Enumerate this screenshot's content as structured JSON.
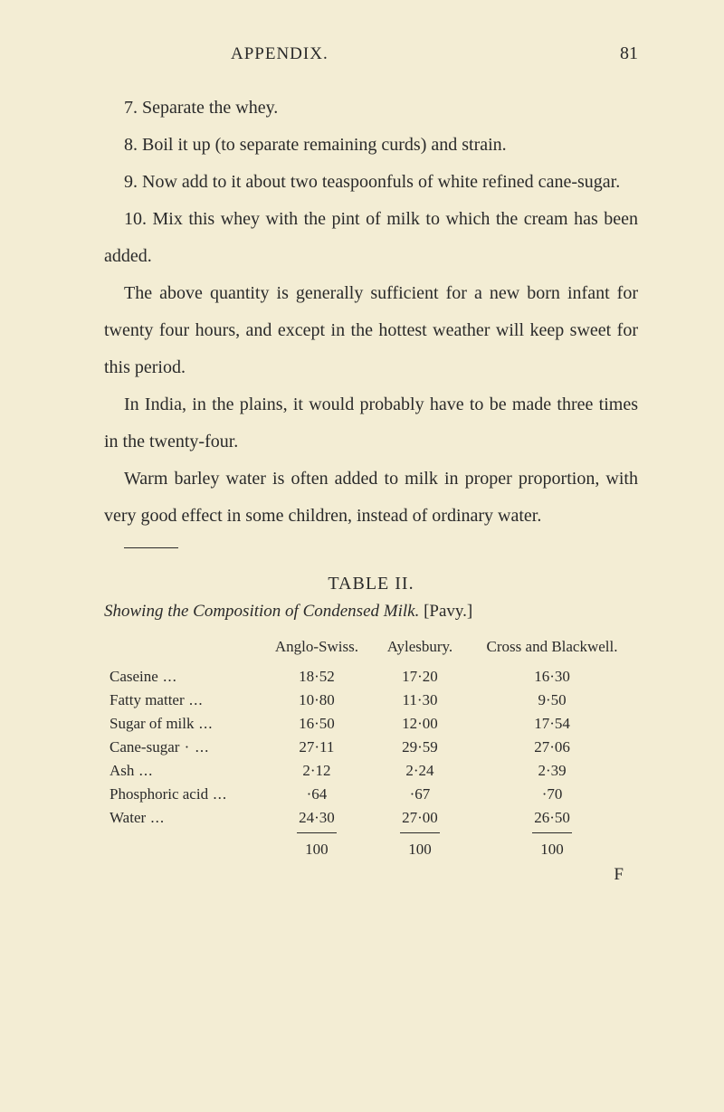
{
  "header": {
    "title": "APPENDIX.",
    "page_number": "81"
  },
  "paragraphs": {
    "p7": "7. Separate the whey.",
    "p8": "8. Boil it up (to separate remaining curds) and strain.",
    "p9": "9. Now add to it about two teaspoonfuls of white refined cane-sugar.",
    "p10": "10. Mix this whey with the pint of milk to which the cream has been added.",
    "p11": "The above quantity is generally sufficient for a new born infant for twenty four hours, and except in the hottest weather will keep sweet for this period.",
    "p12": "In India, in the plains, it would probably have to be made three times in the twenty-four.",
    "p13": "Warm barley water is often added to milk in proper proportion, with very good effect in some children, instead of ordinary water."
  },
  "table": {
    "title": "TABLE II.",
    "caption_prefix": "Showing the Composition of Condensed Milk.",
    "caption_suffix": " [Pavy.]",
    "columns": [
      "",
      "Anglo-Swiss.",
      "Aylesbury.",
      "Cross and Blackwell."
    ],
    "rows": [
      {
        "label": "Caseine",
        "dots": "...",
        "c1": "18·52",
        "c2": "17·20",
        "c3": "16·30"
      },
      {
        "label": "Fatty matter",
        "dots": "...",
        "c1": "10·80",
        "c2": "11·30",
        "c3": "9·50"
      },
      {
        "label": "Sugar of milk",
        "dots": "...",
        "c1": "16·50",
        "c2": "12·00",
        "c3": "17·54"
      },
      {
        "label": "Cane-sugar",
        "dots": "· ...",
        "c1": "27·11",
        "c2": "29·59",
        "c3": "27·06"
      },
      {
        "label": "Ash",
        "dots": "...",
        "c1": "2·12",
        "c2": "2·24",
        "c3": "2·39"
      },
      {
        "label": "Phosphoric acid",
        "dots": "...",
        "c1": "·64",
        "c2": "·67",
        "c3": "·70"
      },
      {
        "label": "Water",
        "dots": "...",
        "c1": "24·30",
        "c2": "27·00",
        "c3": "26·50"
      }
    ],
    "totals": {
      "c1": "100",
      "c2": "100",
      "c3": "100"
    },
    "footer_letter": "F"
  }
}
